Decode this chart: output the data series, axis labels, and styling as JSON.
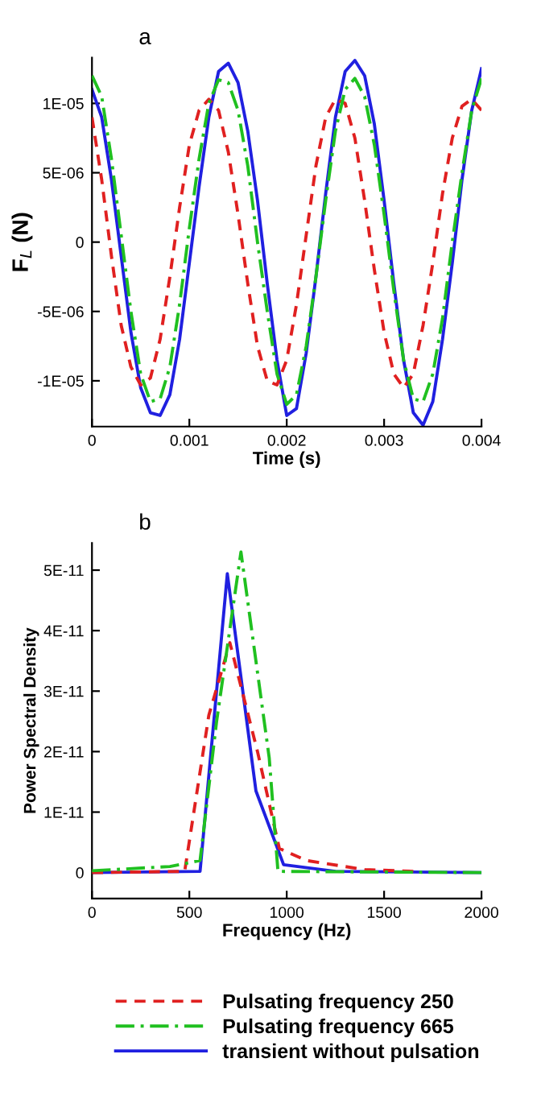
{
  "chart_data": [
    {
      "type": "line",
      "title": "a",
      "xlabel": "Time (s)",
      "ylabel": "F$_{L}$ (N)",
      "xlim": [
        0,
        0.004
      ],
      "ylim": [
        -1.33e-05,
        1.33e-05
      ],
      "xticks": [
        0,
        0.001,
        0.002,
        0.003,
        0.004
      ],
      "yticks": [
        {
          "value": -1e-05,
          "label": "-1E-05"
        },
        {
          "value": -5e-06,
          "label": "-5E-06"
        },
        0,
        {
          "value": 5e-06,
          "label": "5E-06"
        },
        {
          "value": 1e-05,
          "label": "1E-05"
        }
      ],
      "x": [
        0,
        0.0001,
        0.0002,
        0.0003,
        0.0004,
        0.0005,
        0.0006,
        0.0007,
        0.0008,
        0.0009,
        0.001,
        0.0011,
        0.0012,
        0.0013,
        0.0014,
        0.0015,
        0.0016,
        0.0017,
        0.0018,
        0.0019,
        0.002,
        0.0021,
        0.0022,
        0.0023,
        0.0024,
        0.0025,
        0.0026,
        0.0027,
        0.0028,
        0.0029,
        0.003,
        0.0031,
        0.0032,
        0.0033,
        0.0034,
        0.0035,
        0.0036,
        0.0037,
        0.0038,
        0.0039,
        0.004
      ],
      "grid": false,
      "legend": "bottom",
      "marker": "none",
      "series": [
        {
          "name": "Pulsating frequency 250",
          "color": "#e02020",
          "line_style": "dashed",
          "values": [
            9e-06,
            4.5e-06,
            -1e-06,
            -6e-06,
            -9e-06,
            -1.03e-05,
            -9.8e-06,
            -7e-06,
            -2.5e-06,
            2.5e-06,
            7e-06,
            9.5e-06,
            1.03e-05,
            9.5e-06,
            6.5e-06,
            2e-06,
            -3e-06,
            -7.5e-06,
            -1e-05,
            -1.03e-05,
            -8.5e-06,
            -4.5e-06,
            5e-07,
            5.5e-06,
            9e-06,
            1.03e-05,
            1e-05,
            7.5e-06,
            3e-06,
            -2e-06,
            -6.5e-06,
            -9.5e-06,
            -1.05e-05,
            -9.5e-06,
            -6e-06,
            -1.5e-06,
            3.5e-06,
            7.5e-06,
            9.8e-06,
            1.03e-05,
            9.5e-06
          ]
        },
        {
          "name": "Pulsating frequency 665",
          "color": "#20c020",
          "line_style": "dashdot",
          "values": [
            1.2e-05,
            1.05e-05,
            6e-06,
            5e-07,
            -5e-06,
            -9.5e-06,
            -1.15e-05,
            -1.13e-05,
            -9e-06,
            -4.5e-06,
            1e-06,
            6e-06,
            1e-05,
            1.17e-05,
            1.15e-05,
            9.5e-06,
            5.5e-06,
            0,
            -5e-06,
            -9.5e-06,
            -1.17e-05,
            -1.1e-05,
            -7.5e-06,
            -2.5e-06,
            3e-06,
            8e-06,
            1.1e-05,
            1.18e-05,
            1.05e-05,
            7e-06,
            2e-06,
            -3.5e-06,
            -8.5e-06,
            -1.13e-05,
            -1.15e-05,
            -9.5e-06,
            -5.5e-06,
            0,
            5e-06,
            9.5e-06,
            1.18e-05
          ]
        },
        {
          "name": "transient without pulsation",
          "color": "#2020e0",
          "line_style": "solid",
          "values": [
            1.1e-05,
            9e-06,
            4.5e-06,
            -1e-06,
            -6.5e-06,
            -1.05e-05,
            -1.23e-05,
            -1.25e-05,
            -1.1e-05,
            -7e-06,
            -1.5e-06,
            4e-06,
            9e-06,
            1.23e-05,
            1.29e-05,
            1.15e-05,
            8e-06,
            3e-06,
            -3e-06,
            -8.5e-06,
            -1.25e-05,
            -1.2e-05,
            -8e-06,
            -2.5e-06,
            3.5e-06,
            9e-06,
            1.23e-05,
            1.31e-05,
            1.2e-05,
            8.5e-06,
            3e-06,
            -3e-06,
            -8.5e-06,
            -1.23e-05,
            -1.32e-05,
            -1.15e-05,
            -7e-06,
            -1.5e-06,
            4.5e-06,
            9.5e-06,
            1.25e-05
          ]
        }
      ]
    },
    {
      "type": "line",
      "title": "b",
      "xlabel": "Frequency (Hz)",
      "ylabel": "Power Spectral Density",
      "xlim": [
        0,
        2000
      ],
      "ylim": [
        -4.3e-12,
        5.45e-11
      ],
      "xticks": [
        0,
        500,
        1000,
        1500,
        2000
      ],
      "yticks": [
        0,
        {
          "value": 1e-11,
          "label": "1E-11"
        },
        {
          "value": 2e-11,
          "label": "2E-11"
        },
        {
          "value": 3e-11,
          "label": "3E-11"
        },
        {
          "value": 4e-11,
          "label": "4E-11"
        },
        {
          "value": 5e-11,
          "label": "5E-11"
        }
      ],
      "grid": false,
      "legend": "bottom",
      "marker": "none",
      "series": [
        {
          "name": "Pulsating frequency 250",
          "color": "#e02020",
          "line_style": "dashed",
          "x": [
            0,
            476,
            600,
            708,
            850,
            962,
            1100,
            1400,
            1650
          ],
          "values": [
            0,
            2e-13,
            2.6e-11,
            3.8e-11,
            2e-11,
            4e-12,
            2e-12,
            5e-13,
            2e-13
          ]
        },
        {
          "name": "Pulsating frequency 665",
          "color": "#20c020",
          "line_style": "dashdot",
          "x": [
            0,
            400,
            555,
            640,
            765,
            910,
            955,
            2000
          ],
          "values": [
            3e-13,
            1e-12,
            2e-12,
            2.5e-11,
            5.3e-11,
            1.9e-11,
            2e-13,
            0
          ]
        },
        {
          "name": "transient without pulsation",
          "color": "#2020e0",
          "line_style": "solid",
          "x": [
            0,
            555,
            695,
            842,
            984,
            1250,
            2000
          ],
          "values": [
            0,
            2e-13,
            4.94e-11,
            1.35e-11,
            1.3e-12,
            2e-13,
            0
          ]
        }
      ]
    }
  ]
}
